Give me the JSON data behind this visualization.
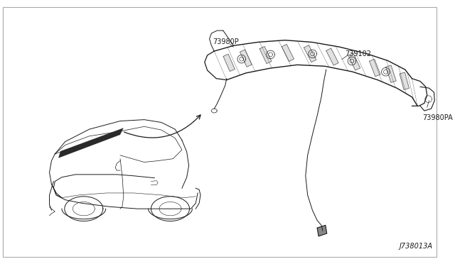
{
  "background_color": "#ffffff",
  "border_color": "#aaaaaa",
  "diagram_id": "J738013A",
  "label_73980P": "73980P",
  "label_739102": "739102",
  "label_73980PA": "73980PA",
  "line_color": "#1a1a1a",
  "text_color": "#1a1a1a",
  "label_fontsize": 7.0,
  "diagram_id_fontsize": 7.0
}
